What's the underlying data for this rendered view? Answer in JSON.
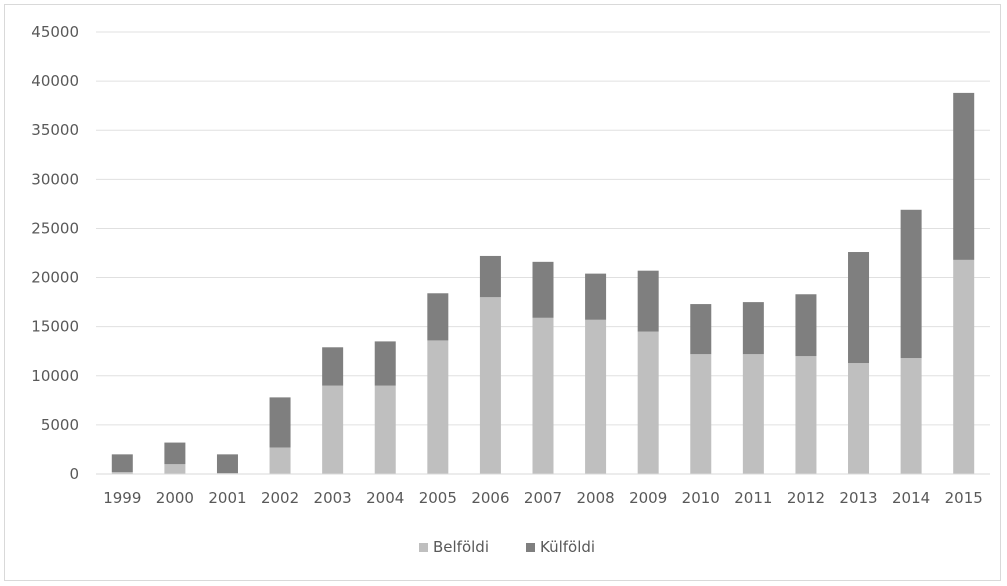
{
  "chart_data": {
    "type": "bar",
    "stacked": true,
    "title": "",
    "xlabel": "",
    "ylabel": "",
    "categories": [
      "1999",
      "2000",
      "2001",
      "2002",
      "2003",
      "2004",
      "2005",
      "2006",
      "2007",
      "2008",
      "2009",
      "2010",
      "2011",
      "2012",
      "2013",
      "2014",
      "2015"
    ],
    "series": [
      {
        "name": "Belföldi",
        "color": "#bfbfbf",
        "values": [
          200,
          1000,
          100,
          2700,
          9000,
          9000,
          13600,
          18000,
          15900,
          15700,
          14500,
          12200,
          12200,
          12000,
          11300,
          11800,
          21800
        ]
      },
      {
        "name": "Külföldi",
        "color": "#7f7f7f",
        "values": [
          1800,
          2200,
          1900,
          5100,
          3900,
          4500,
          4800,
          4200,
          5700,
          4700,
          6200,
          5100,
          5300,
          6300,
          11300,
          15100,
          17000
        ]
      }
    ],
    "ylim": [
      0,
      45000
    ],
    "yticks": [
      "0",
      "5000",
      "10000",
      "15000",
      "20000",
      "25000",
      "30000",
      "35000",
      "40000",
      "45000"
    ],
    "grid": true,
    "legend_position": "bottom"
  }
}
